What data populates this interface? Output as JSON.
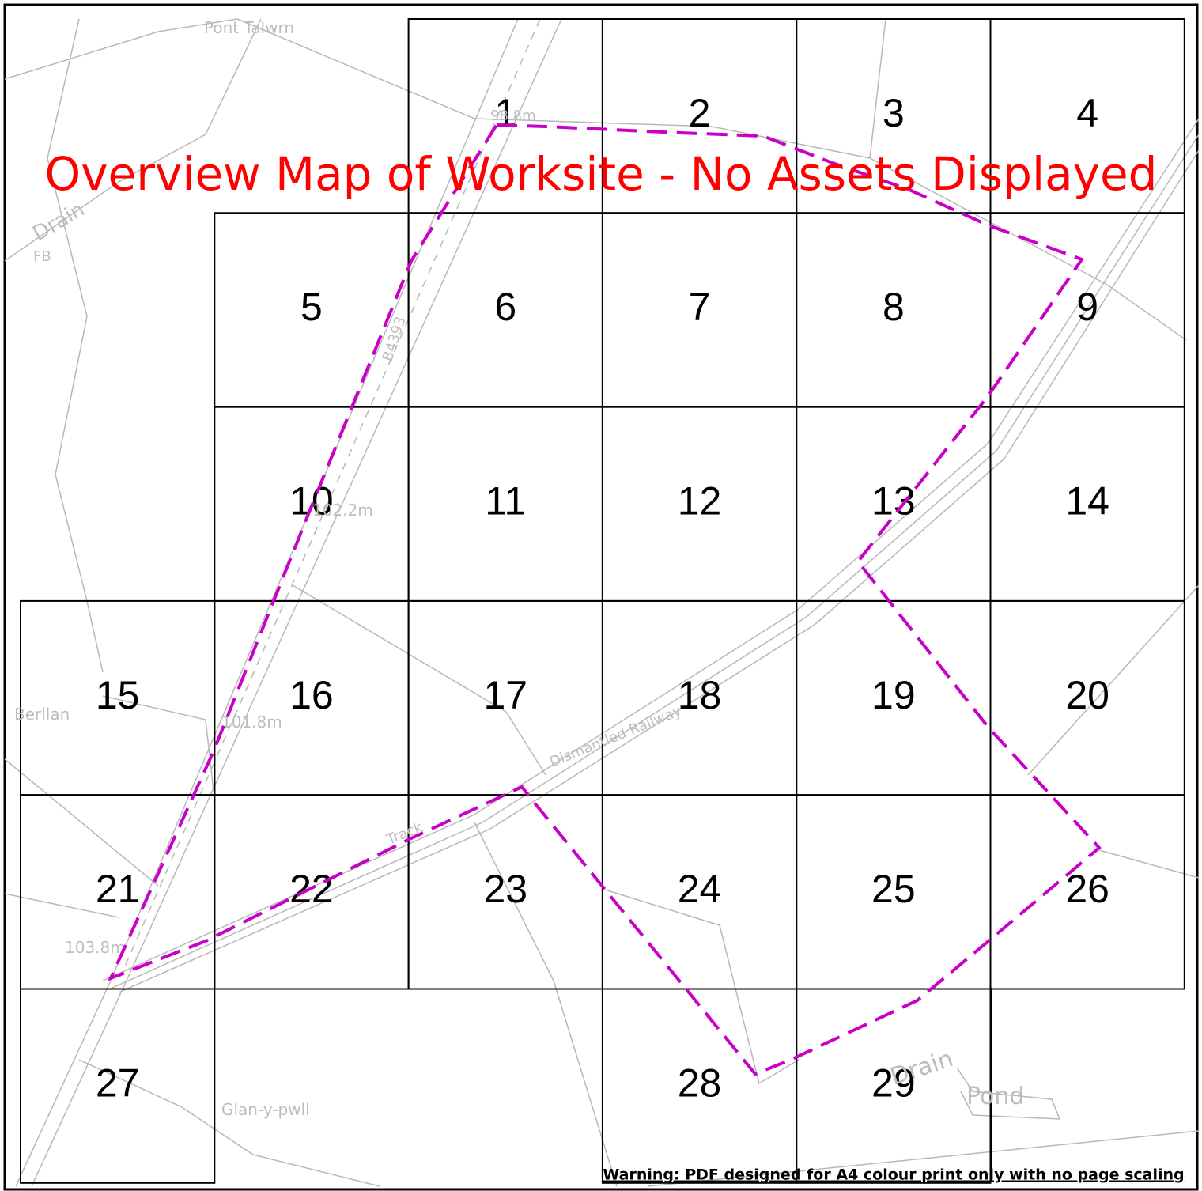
{
  "title": "Overview Map of Worksite - No Assets Displayed",
  "warning": "Warning: PDF designed for A4 colour print only with no page scaling",
  "grid_cells": [
    "1",
    "2",
    "3",
    "4",
    "5",
    "6",
    "7",
    "8",
    "9",
    "10",
    "11",
    "12",
    "13",
    "14",
    "15",
    "16",
    "17",
    "18",
    "19",
    "20",
    "21",
    "22",
    "23",
    "24",
    "25",
    "26",
    "27",
    "28",
    "29"
  ],
  "map_labels": [
    "Pont Talwrn",
    "Drain",
    "FB",
    "B4393",
    "98.8m",
    "102.2m",
    "101.8m",
    "Berllan",
    "Dismantled Railway",
    "Track",
    "103.8m",
    "Glan-y-pwll",
    "Drain",
    "Pond"
  ]
}
